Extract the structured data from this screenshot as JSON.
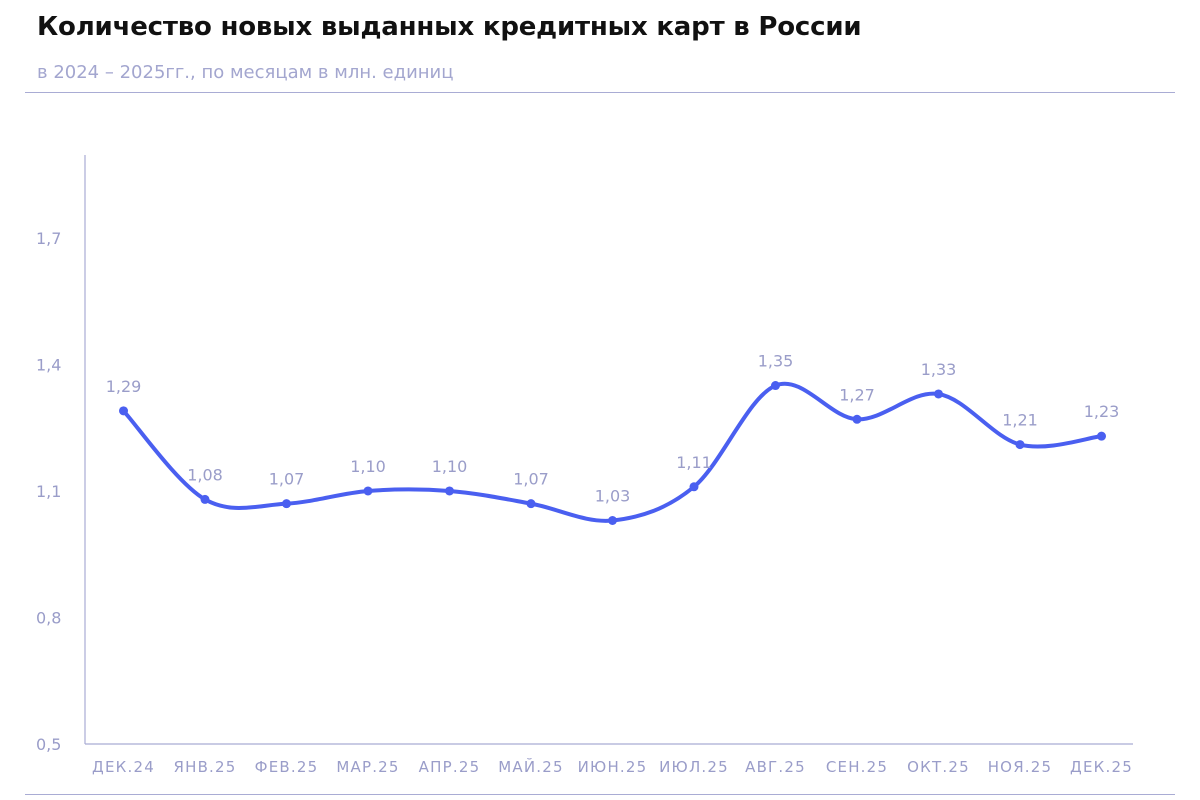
{
  "header": {
    "title": "Количество новых выданных кредитных карт в России",
    "subtitle": "в 2024 – 2025гг., по месяцам в млн. единиц"
  },
  "colors": {
    "line": "#4a5ff0",
    "axis": "#a9acd4",
    "tick_text": "#9a9dc9",
    "title": "#111111",
    "subtitle": "#a3a6cf"
  },
  "chart_data": {
    "type": "line",
    "title": "Количество новых выданных кредитных карт в России",
    "subtitle": "в 2024 – 2025гг., по месяцам в млн. единиц",
    "xlabel": "",
    "ylabel": "",
    "categories": [
      "ДЕК.24",
      "ЯНВ.25",
      "ФЕВ.25",
      "МАР.25",
      "АПР.25",
      "МАЙ.25",
      "ИЮН.25",
      "ИЮЛ.25",
      "АВГ.25",
      "СЕН.25",
      "ОКТ.25",
      "НОЯ.25",
      "ДЕК.25"
    ],
    "series": [
      {
        "values": [
          1.29,
          1.08,
          1.07,
          1.1,
          1.1,
          1.07,
          1.03,
          1.11,
          1.35,
          1.27,
          1.33,
          1.21,
          1.23
        ],
        "labels": [
          "1,29",
          "1,08",
          "1,07",
          "1,10",
          "1,10",
          "1,07",
          "1,03",
          "1,11",
          "1,35",
          "1,27",
          "1,33",
          "1,21",
          "1,23"
        ]
      }
    ],
    "yticks": [
      0.5,
      0.8,
      1.1,
      1.4,
      1.7
    ],
    "ytick_labels": [
      "0,5",
      "0,8",
      "1,1",
      "1,4",
      "1,7"
    ],
    "ylim": [
      0.5,
      1.9
    ],
    "grid": false,
    "smooth": true,
    "markers": true
  }
}
